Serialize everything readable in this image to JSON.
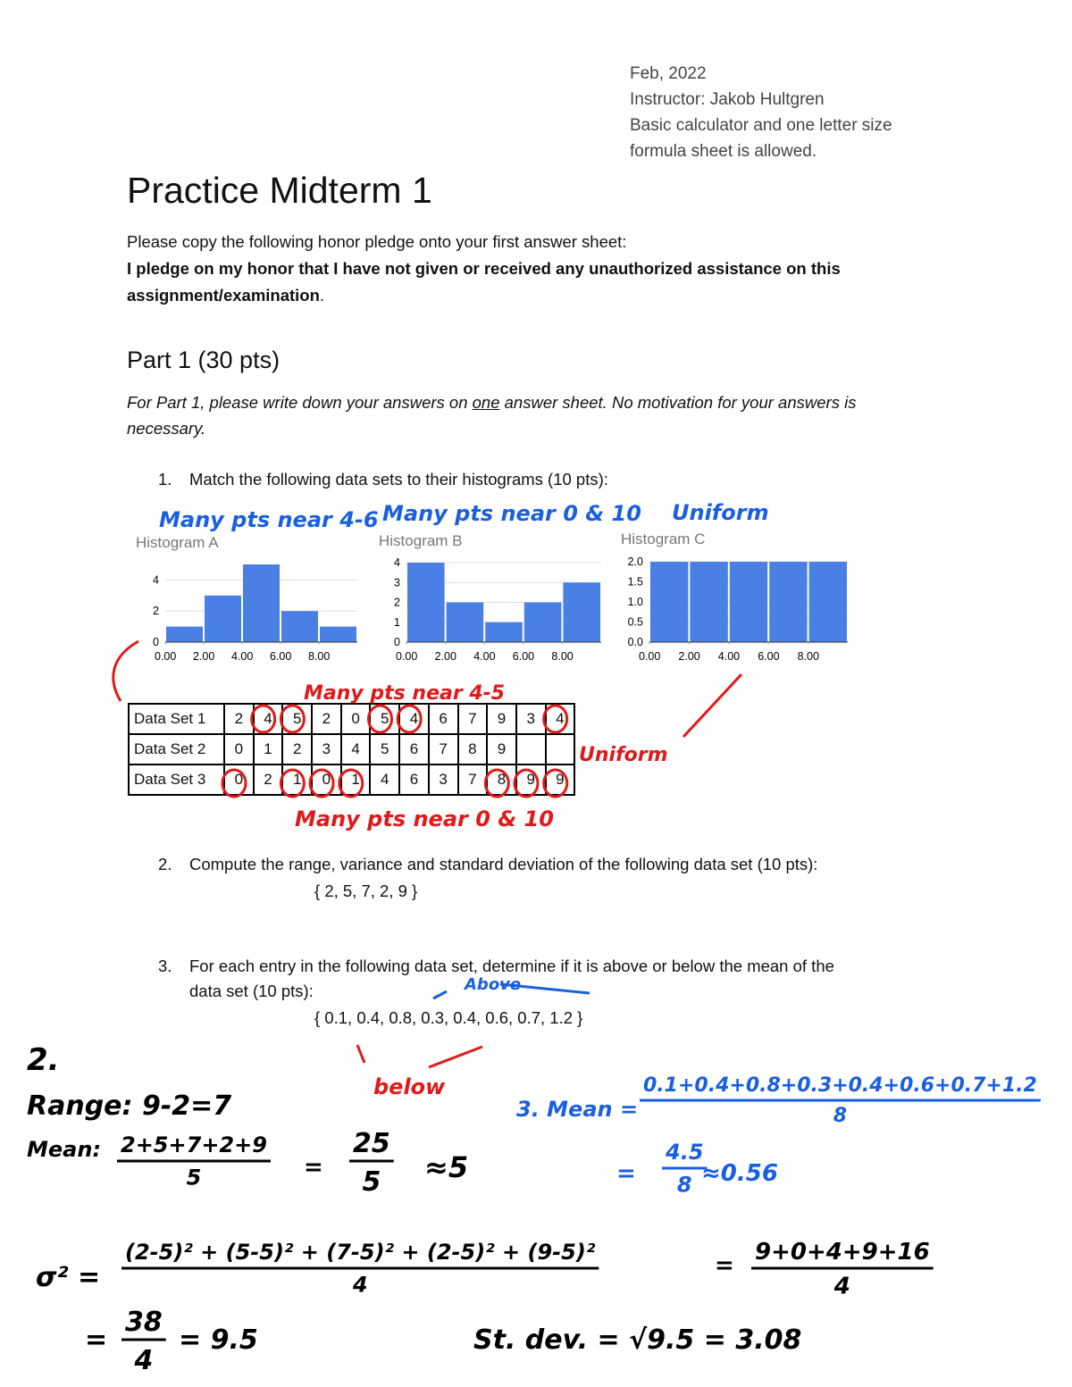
{
  "header": {
    "lines": [
      "Feb, 2022",
      "Instructor: Jakob Hultgren",
      "Basic calculator and one letter size",
      "formula sheet is allowed."
    ]
  },
  "title": "Practice Midterm 1",
  "pledge": {
    "intro": "Please copy the following honor pledge onto your first answer sheet:",
    "text": "I pledge on my honor that I have not given or received any unauthorized assistance on this assignment/examination",
    "end": "."
  },
  "part": {
    "heading": "Part 1 (30 pts)",
    "instructions": [
      "For Part 1, please write down your answers on ",
      "one",
      " answer sheet. No motivation for your answers is necessary."
    ]
  },
  "questions": [
    {
      "number": "1.",
      "text": "Match the following data sets to their histograms (10 pts):"
    },
    {
      "number": "2.",
      "text": "Compute the range, variance and standard deviation of the following data set (10 pts):",
      "set": "{ 2, 5, 7, 2, 9 }"
    },
    {
      "number": "3.",
      "text": "For each entry in the following data set, determine if it is above or below the mean of the",
      "text2": "data set (10 pts):",
      "set": "{ 0.1, 0.4, 0.8, 0.3, 0.4, 0.6, 0.7, 1.2 }"
    }
  ],
  "histograms": [
    {
      "type": "histogram",
      "title": "Histogram A",
      "bins": [
        0,
        2,
        4,
        6,
        8,
        10
      ],
      "values": [
        1,
        3,
        5,
        2,
        1
      ],
      "color": "#4a7fe3",
      "xlim": [
        0,
        10
      ],
      "ylim": [
        0,
        5
      ],
      "xticks": [
        {
          "value": 0,
          "label": "0.00"
        },
        {
          "value": 2,
          "label": "2.00"
        },
        {
          "value": 4,
          "label": "4.00"
        },
        {
          "value": 6,
          "label": "6.00"
        },
        {
          "value": 8,
          "label": "8.00"
        }
      ],
      "yticks": [
        0,
        2,
        4
      ],
      "grid": true
    },
    {
      "type": "histogram",
      "title": "Histogram B",
      "bins": [
        0,
        2,
        4,
        6,
        8,
        10
      ],
      "values": [
        4,
        2,
        1,
        2,
        3
      ],
      "color": "#4a7fe3",
      "xlim": [
        0,
        10
      ],
      "ylim": [
        0,
        4
      ],
      "xticks": [
        {
          "value": 0,
          "label": "0.00"
        },
        {
          "value": 2,
          "label": "2.00"
        },
        {
          "value": 4,
          "label": "4.00"
        },
        {
          "value": 6,
          "label": "6.00"
        },
        {
          "value": 8,
          "label": "8.00"
        }
      ],
      "yticks": [
        0,
        1,
        2,
        3,
        4
      ],
      "grid": true
    },
    {
      "type": "histogram",
      "title": "Histogram C",
      "bins": [
        0,
        2,
        4,
        6,
        8,
        10
      ],
      "values": [
        2,
        2,
        2,
        2,
        2
      ],
      "color": "#4a7fe3",
      "xlim": [
        0,
        10
      ],
      "ylim": [
        0,
        2
      ],
      "xticks": [
        {
          "value": 0,
          "label": "0.00"
        },
        {
          "value": 2,
          "label": "2.00"
        },
        {
          "value": 4,
          "label": "4.00"
        },
        {
          "value": 6,
          "label": "6.00"
        },
        {
          "value": 8,
          "label": "8.00"
        }
      ],
      "yticks": [
        {
          "value": 0,
          "label": "0.0"
        },
        {
          "value": 0.5,
          "label": "0.5"
        },
        {
          "value": 1,
          "label": "1.0"
        },
        {
          "value": 1.5,
          "label": "1.5"
        },
        {
          "value": 2,
          "label": "2.0"
        }
      ],
      "grid": true
    }
  ],
  "table": {
    "rows": [
      {
        "label": "Data Set 1",
        "cells": [
          2,
          4,
          5,
          2,
          0,
          5,
          4,
          6,
          7,
          9,
          3,
          4
        ]
      },
      {
        "label": "Data Set 2",
        "cells": [
          0,
          1,
          2,
          3,
          4,
          5,
          6,
          7,
          8,
          9
        ]
      },
      {
        "label": "Data Set 3",
        "cells": [
          0,
          2,
          1,
          0,
          1,
          4,
          6,
          3,
          7,
          8,
          9,
          9
        ]
      }
    ]
  },
  "annotations": [
    {
      "text": "Many pts near 4-6",
      "color": "#1a5fe0"
    },
    {
      "text": "Many pts near 0 & 10",
      "color": "#1a5fe0"
    },
    {
      "text": "Uniform",
      "color": "#1a5fe0"
    },
    {
      "text": "Many pts near 4-5",
      "color": "#e01a1a"
    },
    {
      "text": "Uniform",
      "color": "#e01a1a"
    },
    {
      "text": "Many pts near 0 & 10",
      "color": "#e01a1a"
    },
    {
      "text": "Above",
      "color": "#1a5fe0"
    },
    {
      "text": "below",
      "color": "#e01a1a"
    },
    {
      "text": "3. Mean =",
      "color": "#1a5fe0"
    },
    {
      "num": "0.1+0.4+0.8+0.3+0.4+0.6+0.7+1.2",
      "den": "8",
      "color": "#1a5fe0"
    },
    {
      "text": "=",
      "color": "#1a5fe0"
    },
    {
      "num": "4.5",
      "den": "8",
      "color": "#1a5fe0"
    },
    {
      "text": "≈0.56",
      "color": "#1a5fe0"
    },
    {
      "text": "2.",
      "color": "#000000"
    },
    {
      "text": "Range: 9-2=7",
      "color": "#000000"
    },
    {
      "text": "Mean:",
      "color": "#000000"
    },
    {
      "num": "2+5+7+2+9",
      "den": "5",
      "color": "#000000"
    },
    {
      "text": "=",
      "color": "#000000"
    },
    {
      "num": "25",
      "den": "5",
      "color": "#000000"
    },
    {
      "text": "≈5",
      "color": "#000000"
    },
    {
      "text": "σ² =",
      "color": "#000000"
    },
    {
      "num": "(2-5)² + (5-5)² + (7-5)² + (2-5)² + (9-5)²",
      "den": "4",
      "color": "#000000"
    },
    {
      "text": "=",
      "color": "#000000"
    },
    {
      "num": "9+0+4+9+16",
      "den": "4",
      "color": "#000000"
    },
    {
      "text": "=",
      "color": "#000000"
    },
    {
      "num": "38",
      "den": "4",
      "color": "#000000"
    },
    {
      "text": "= 9.5",
      "color": "#000000"
    },
    {
      "text": "St. dev. = √9.5 = 3.08",
      "color": "#000000"
    }
  ]
}
